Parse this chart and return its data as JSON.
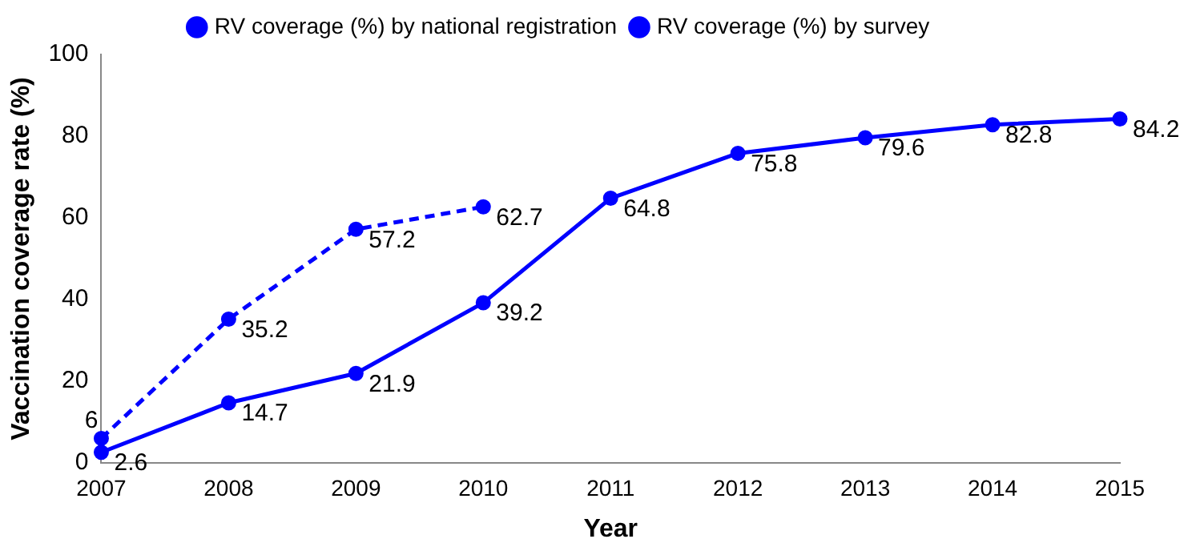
{
  "chart_data": {
    "type": "line",
    "xlabel": "Year",
    "ylabel": "Vaccination coverage rate (%)",
    "categories": [
      "2007",
      "2008",
      "2009",
      "2010",
      "2011",
      "2012",
      "2013",
      "2014",
      "2015"
    ],
    "series": [
      {
        "name": "RV coverage (%) by national registration",
        "color": "#0000ff",
        "line_style": "solid",
        "values": [
          2.6,
          14.7,
          21.9,
          39.2,
          64.8,
          75.8,
          79.6,
          82.8,
          84.2
        ]
      },
      {
        "name": "RV coverage (%) by survey",
        "color": "#0000ff",
        "line_style": "dashed",
        "values": [
          6,
          35.2,
          57.2,
          62.7,
          null,
          null,
          null,
          null,
          null
        ]
      }
    ],
    "ylim": [
      0,
      100
    ],
    "yticks": [
      0,
      20,
      40,
      60,
      80,
      100
    ],
    "grid": false,
    "legend": "top",
    "marker": "circle",
    "data_labels": true
  }
}
